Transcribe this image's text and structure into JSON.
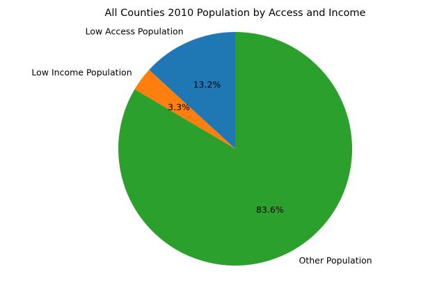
{
  "chart_data": {
    "type": "pie",
    "title": "All Counties 2010 Population by Access and Income",
    "slices": [
      {
        "label": "Low Access Population",
        "value": 13.2,
        "pct_label": "13.2%",
        "color": "#1f77b4"
      },
      {
        "label": "Low Income Population",
        "value": 3.3,
        "pct_label": "3.3%",
        "color": "#ff7f0e"
      },
      {
        "label": "Other Population",
        "value": 83.6,
        "pct_label": "83.6%",
        "color": "#2ca02c"
      }
    ],
    "start_angle_deg": 90,
    "direction": "counterclockwise",
    "legend": "none"
  }
}
